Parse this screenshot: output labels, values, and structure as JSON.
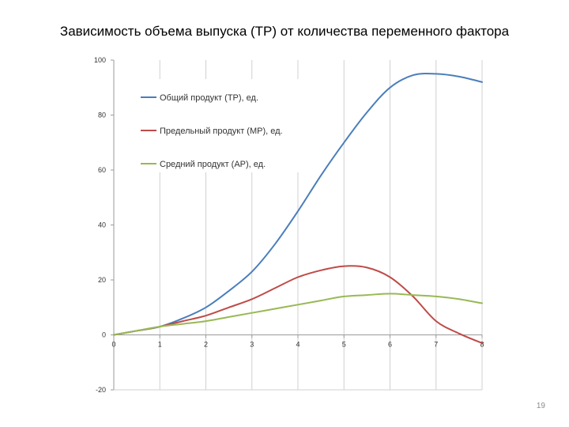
{
  "slide": {
    "title": "Зависимость объема выпуска (ТР) от количества переменного фактора",
    "page_number": "19"
  },
  "chart_data": {
    "type": "line",
    "x_ticks": [
      "0",
      "1",
      "2",
      "3",
      "4",
      "5",
      "6",
      "7",
      "8"
    ],
    "y_ticks": [
      "-20",
      "0",
      "20",
      "40",
      "60",
      "80",
      "100"
    ],
    "xlim": [
      0,
      8
    ],
    "ylim": [
      -20,
      100
    ],
    "grid": "vertical",
    "legend_position": "top-left",
    "series": [
      {
        "name": "Общий продукт (ТР), ед.",
        "color": "#4a7ebb",
        "x": [
          0,
          0.5,
          1,
          1.5,
          2,
          2.5,
          3,
          3.5,
          4,
          4.5,
          5,
          5.5,
          6,
          6.5,
          7,
          7.5,
          8
        ],
        "y": [
          0,
          1.5,
          3,
          6,
          10,
          16,
          23,
          33,
          45,
          58,
          70,
          81,
          90,
          94.5,
          95,
          94,
          92
        ]
      },
      {
        "name": "Предельный продукт (МР), ед.",
        "color": "#be4b48",
        "x": [
          0,
          0.5,
          1,
          1.5,
          2,
          2.5,
          3,
          3.5,
          4,
          4.5,
          5,
          5.5,
          6,
          6.5,
          7,
          7.5,
          8
        ],
        "y": [
          0,
          1.5,
          3,
          5,
          7,
          10,
          13,
          17,
          21,
          23.5,
          25,
          24.5,
          21,
          14,
          5,
          0.5,
          -3
        ]
      },
      {
        "name": "Средний продукт (АР), ед.",
        "color": "#98b954",
        "x": [
          0,
          0.5,
          1,
          1.5,
          2,
          2.5,
          3,
          3.5,
          4,
          4.5,
          5,
          5.5,
          6,
          6.5,
          7,
          7.5,
          8
        ],
        "y": [
          0,
          1.5,
          3,
          4,
          5,
          6.5,
          8,
          9.5,
          11,
          12.5,
          14,
          14.5,
          15,
          14.5,
          14,
          13,
          11.5
        ]
      }
    ]
  }
}
